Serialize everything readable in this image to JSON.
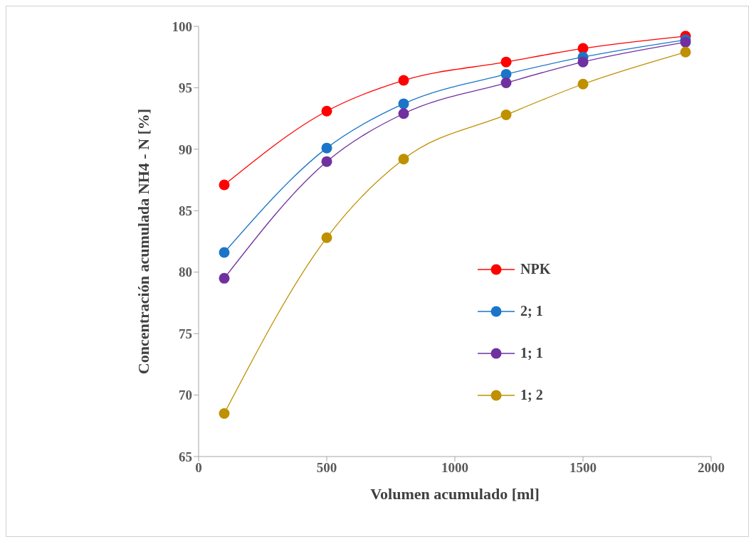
{
  "chart_data": {
    "type": "line",
    "xlabel": "Volumen acumulado [ml]",
    "ylabel": "Concentración acumulada NH4 - N [%]",
    "x": [
      100,
      500,
      800,
      1200,
      1500,
      1900
    ],
    "series": [
      {
        "name": "NPK",
        "color": "#ff0000",
        "values": [
          87.1,
          93.1,
          95.6,
          97.1,
          98.2,
          99.2
        ]
      },
      {
        "name": "2; 1",
        "color": "#1a75c9",
        "values": [
          81.6,
          90.1,
          93.7,
          96.1,
          97.5,
          98.9
        ]
      },
      {
        "name": "1; 1",
        "color": "#7030a0",
        "values": [
          79.5,
          89.0,
          92.9,
          95.4,
          97.1,
          98.7
        ]
      },
      {
        "name": "1; 2",
        "color": "#bf9000",
        "values": [
          68.5,
          82.8,
          89.2,
          92.8,
          95.3,
          97.9
        ]
      }
    ],
    "xlim": [
      0,
      2000
    ],
    "xticks": [
      0,
      500,
      1000,
      1500,
      2000
    ],
    "ylim": [
      65,
      100
    ],
    "yticks": [
      65,
      70,
      75,
      80,
      85,
      90,
      95,
      100
    ],
    "grid": false,
    "legend": "right",
    "marker": "circle",
    "line_style": "solid"
  }
}
